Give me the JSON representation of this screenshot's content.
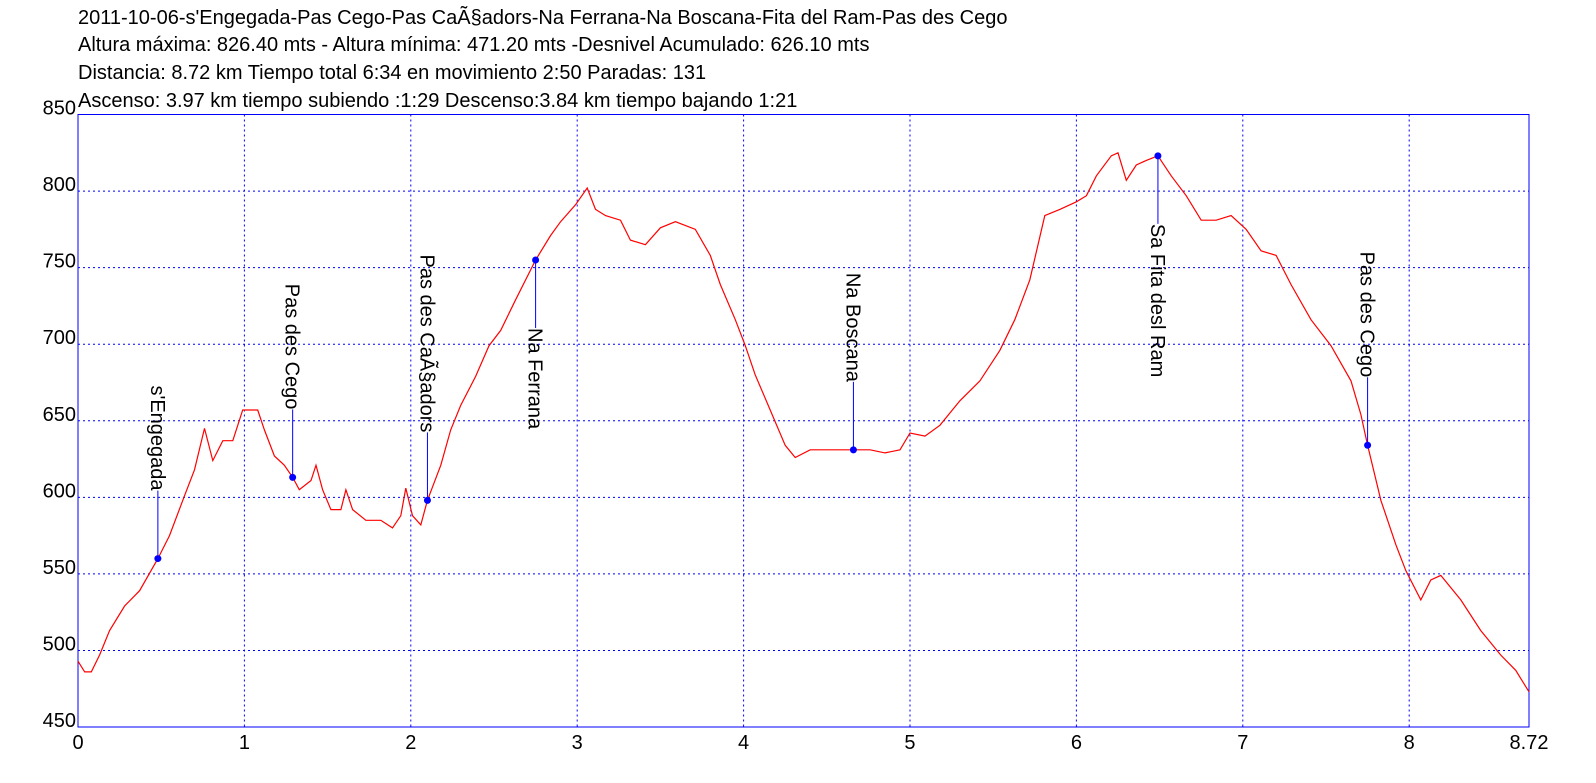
{
  "chart_data": {
    "type": "line",
    "title": "2011-10-06-s'Engegada-Pas Cego-Pas CaÃ§adors-Na Ferrana-Na Boscana-Fita del Ram-Pas des Cego",
    "subtitle_lines": [
      "Altura máxima: 826.40 mts - Altura mínima: 471.20 mts -Desnivel Acumulado: 626.10 mts",
      "Distancia: 8.72 km  Tiempo total 6:34  en movimiento 2:50 Paradas: 131",
      "Ascenso: 3.97 km  tiempo subiendo :1:29  Descenso:3.84 km tiempo bajando 1:21"
    ],
    "x": [
      0,
      0.04,
      0.08,
      0.13,
      0.19,
      0.28,
      0.37,
      0.48,
      0.55,
      0.64,
      0.7,
      0.76,
      0.81,
      0.87,
      0.93,
      0.99,
      1.03,
      1.08,
      1.12,
      1.18,
      1.24,
      1.29,
      1.33,
      1.4,
      1.43,
      1.47,
      1.52,
      1.58,
      1.61,
      1.65,
      1.73,
      1.82,
      1.89,
      1.94,
      1.97,
      2.01,
      2.06,
      2.1,
      2.18,
      2.24,
      2.3,
      2.39,
      2.47,
      2.54,
      2.63,
      2.75,
      2.84,
      2.9,
      2.99,
      3.06,
      3.11,
      3.17,
      3.26,
      3.32,
      3.41,
      3.5,
      3.59,
      3.71,
      3.8,
      3.86,
      3.95,
      4.01,
      4.07,
      4.16,
      4.25,
      4.31,
      4.4,
      4.52,
      4.66,
      4.76,
      4.85,
      4.94,
      5.0,
      5.09,
      5.18,
      5.3,
      5.42,
      5.54,
      5.63,
      5.72,
      5.81,
      5.9,
      6.0,
      6.06,
      6.12,
      6.21,
      6.25,
      6.3,
      6.36,
      6.42,
      6.49,
      6.57,
      6.66,
      6.75,
      6.84,
      6.93,
      7.02,
      7.11,
      7.2,
      7.29,
      7.41,
      7.53,
      7.65,
      7.71,
      7.75,
      7.83,
      7.92,
      7.98,
      8.07,
      8.13,
      8.19,
      8.31,
      8.43,
      8.55,
      8.64,
      8.72
    ],
    "y": [
      493,
      486,
      486,
      497,
      513,
      529,
      539,
      560,
      575,
      601,
      618,
      645,
      624,
      637,
      637,
      657,
      657,
      657,
      644,
      627,
      621,
      613,
      605,
      611,
      621,
      605,
      592,
      592,
      605,
      592,
      585,
      585,
      580,
      588,
      606,
      588,
      582,
      598,
      621,
      644,
      660,
      679,
      699,
      709,
      729,
      755,
      771,
      780,
      791,
      802,
      788,
      784,
      781,
      768,
      765,
      776,
      780,
      775,
      758,
      739,
      716,
      699,
      680,
      657,
      634,
      626,
      631,
      631,
      631,
      631,
      629,
      631,
      642,
      640,
      647,
      663,
      676,
      696,
      716,
      742,
      784,
      788,
      793,
      797,
      810,
      823,
      825,
      807,
      817,
      820,
      823,
      810,
      797,
      781,
      781,
      784,
      775,
      761,
      758,
      739,
      716,
      699,
      676,
      654,
      634,
      598,
      569,
      552,
      533,
      546,
      549,
      533,
      513,
      497,
      487,
      473
    ],
    "color": "#ff0000",
    "waypoints": [
      {
        "name": "s'Engegada",
        "x": 0.48,
        "y": 560,
        "label_position": "above"
      },
      {
        "name": "Pas des Cego",
        "x": 1.29,
        "y": 613,
        "label_position": "above"
      },
      {
        "name": "Pas des CaÃ§adors",
        "x": 2.1,
        "y": 598,
        "label_position": "above"
      },
      {
        "name": "Na Ferrana",
        "x": 2.75,
        "y": 755,
        "label_position": "below"
      },
      {
        "name": "Na Boscana",
        "x": 4.66,
        "y": 631,
        "label_position": "above"
      },
      {
        "name": "Sa Fita desl Ram",
        "x": 6.49,
        "y": 823,
        "label_position": "below"
      },
      {
        "name": "Pas des Cego",
        "x": 7.75,
        "y": 634,
        "label_position": "above"
      }
    ],
    "waypoint_color": "#0000ff",
    "xlim": [
      0,
      8.72
    ],
    "xticks": [
      0,
      1,
      2,
      3,
      4,
      5,
      6,
      7,
      8,
      8.72
    ],
    "ylim": [
      450,
      850
    ],
    "yticks": [
      450,
      500,
      550,
      600,
      650,
      700,
      750,
      800,
      850
    ],
    "grid": true
  }
}
